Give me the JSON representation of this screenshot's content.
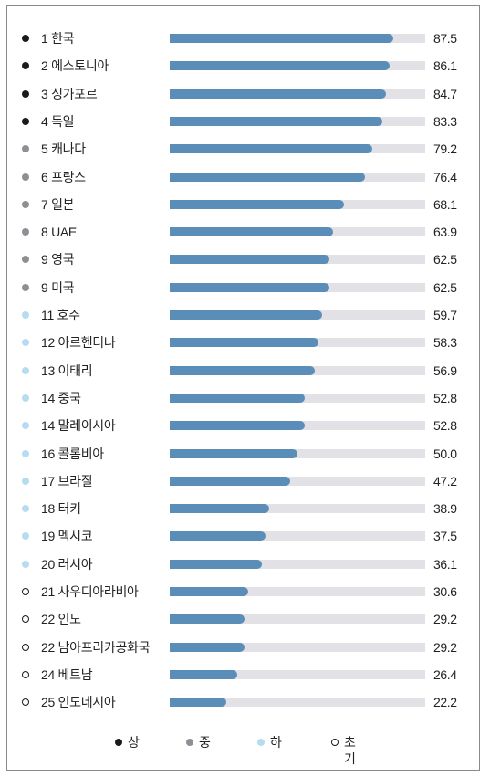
{
  "chart_data": {
    "type": "bar",
    "orientation": "horizontal",
    "xlim": [
      0,
      100
    ],
    "grid": false,
    "legend_position": "bottom",
    "rows": [
      {
        "label": "1 한국",
        "value": 87.5,
        "value_text": "87.5",
        "tier": "상"
      },
      {
        "label": "2 에스토니아",
        "value": 86.1,
        "value_text": "86.1",
        "tier": "상"
      },
      {
        "label": "3 싱가포르",
        "value": 84.7,
        "value_text": "84.7",
        "tier": "상"
      },
      {
        "label": "4 독일",
        "value": 83.3,
        "value_text": "83.3",
        "tier": "상"
      },
      {
        "label": "5 캐나다",
        "value": 79.2,
        "value_text": "79.2",
        "tier": "중"
      },
      {
        "label": "6 프랑스",
        "value": 76.4,
        "value_text": "76.4",
        "tier": "중"
      },
      {
        "label": "7 일본",
        "value": 68.1,
        "value_text": "68.1",
        "tier": "중"
      },
      {
        "label": "8 UAE",
        "value": 63.9,
        "value_text": "63.9",
        "tier": "중"
      },
      {
        "label": "9 영국",
        "value": 62.5,
        "value_text": "62.5",
        "tier": "중"
      },
      {
        "label": "9 미국",
        "value": 62.5,
        "value_text": "62.5",
        "tier": "중"
      },
      {
        "label": "11 호주",
        "value": 59.7,
        "value_text": "59.7",
        "tier": "하"
      },
      {
        "label": "12 아르헨티나",
        "value": 58.3,
        "value_text": "58.3",
        "tier": "하"
      },
      {
        "label": "13 이태리",
        "value": 56.9,
        "value_text": "56.9",
        "tier": "하"
      },
      {
        "label": "14 중국",
        "value": 52.8,
        "value_text": "52.8",
        "tier": "하"
      },
      {
        "label": "14 말레이시아",
        "value": 52.8,
        "value_text": "52.8",
        "tier": "하"
      },
      {
        "label": "16 콜롬비아",
        "value": 50.0,
        "value_text": "50.0",
        "tier": "하"
      },
      {
        "label": "17 브라질",
        "value": 47.2,
        "value_text": "47.2",
        "tier": "하"
      },
      {
        "label": "18 터키",
        "value": 38.9,
        "value_text": "38.9",
        "tier": "하"
      },
      {
        "label": "19 멕시코",
        "value": 37.5,
        "value_text": "37.5",
        "tier": "하"
      },
      {
        "label": "20 러시아",
        "value": 36.1,
        "value_text": "36.1",
        "tier": "하"
      },
      {
        "label": "21 사우디아라비아",
        "value": 30.6,
        "value_text": "30.6",
        "tier": "초기"
      },
      {
        "label": "22 인도",
        "value": 29.2,
        "value_text": "29.2",
        "tier": "초기"
      },
      {
        "label": "22 남아프리카공화국",
        "value": 29.2,
        "value_text": "29.2",
        "tier": "초기"
      },
      {
        "label": "24 베트남",
        "value": 26.4,
        "value_text": "26.4",
        "tier": "초기"
      },
      {
        "label": "25 인도네시아",
        "value": 22.2,
        "value_text": "22.2",
        "tier": "초기"
      }
    ],
    "legend": [
      {
        "tier": "상",
        "label": "상",
        "color": "#1a1a1a",
        "hollow": false
      },
      {
        "tier": "중",
        "label": "중",
        "color": "#8e8e94",
        "hollow": false
      },
      {
        "tier": "하",
        "label": "하",
        "color": "#b6dcef",
        "hollow": false
      },
      {
        "tier": "초기",
        "label": "초기",
        "color": "#1a1a1a",
        "hollow": true
      }
    ],
    "colors": {
      "bar": "#5b8db9",
      "track": "#e2e2e6",
      "frame": "#8a8a8a"
    }
  }
}
